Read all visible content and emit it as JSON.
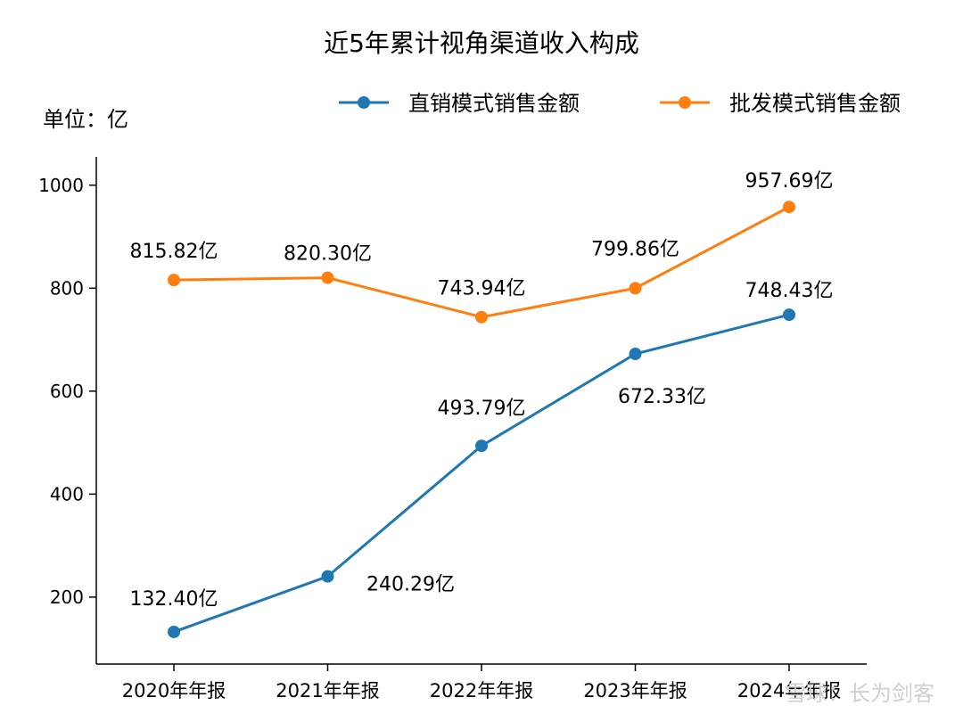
{
  "chart_data": {
    "type": "line",
    "title": "近5年累计视角渠道收入构成",
    "unit_label": "单位：亿",
    "categories": [
      "2020年年报",
      "2021年年报",
      "2022年年报",
      "2023年年报",
      "2024年年报"
    ],
    "series": [
      {
        "name": "直销模式销售金额",
        "color": "#1f77b4",
        "values": [
          132.4,
          240.29,
          493.79,
          672.33,
          748.43
        ],
        "labels": [
          "132.40亿",
          "240.29亿",
          "493.79亿",
          "672.33亿",
          "748.43亿"
        ]
      },
      {
        "name": "批发模式销售金额",
        "color": "#ff7f0e",
        "values": [
          815.82,
          820.3,
          743.94,
          799.86,
          957.69
        ],
        "labels": [
          "815.82亿",
          "820.30亿",
          "743.94亿",
          "799.86亿",
          "957.69亿"
        ]
      }
    ],
    "ylim": [
      70,
      1055
    ],
    "yticks": [
      200,
      400,
      600,
      800,
      1000
    ],
    "grid": false,
    "legend_position": "top-right"
  },
  "watermark": "雪球：长为剑客"
}
